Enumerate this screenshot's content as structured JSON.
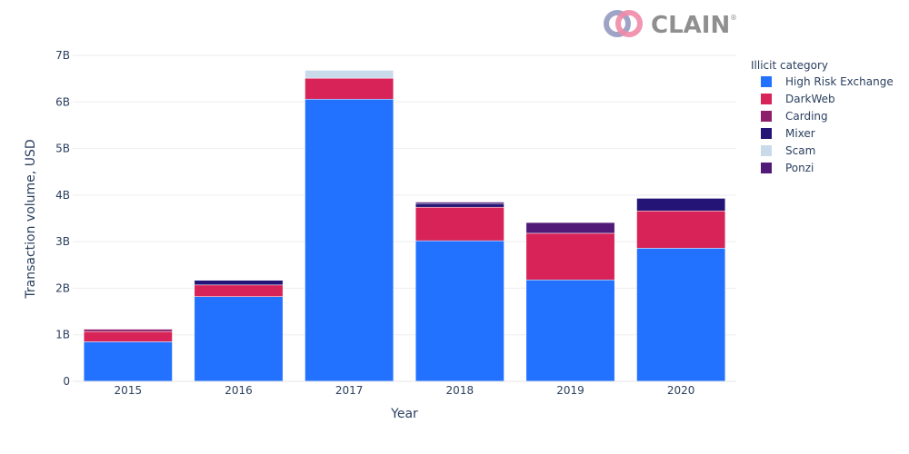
{
  "logo": {
    "text": "CLAIN",
    "reg": "®"
  },
  "chart_data": {
    "type": "bar",
    "stacked": true,
    "categories": [
      "2015",
      "2016",
      "2017",
      "2018",
      "2019",
      "2020"
    ],
    "series": [
      {
        "name": "High Risk Exchange",
        "color": "#2271FF",
        "values": [
          0.85,
          1.82,
          6.06,
          3.02,
          2.18,
          2.86
        ]
      },
      {
        "name": "DarkWeb",
        "color": "#D72357",
        "values": [
          0.22,
          0.25,
          0.45,
          0.72,
          1.0,
          0.8
        ]
      },
      {
        "name": "Carding",
        "color": "#8C1F6B",
        "values": [
          0.05,
          0.0,
          0.0,
          0.0,
          0.0,
          0.0
        ]
      },
      {
        "name": "Mixer",
        "color": "#241475",
        "values": [
          0.0,
          0.1,
          0.0,
          0.08,
          0.0,
          0.27
        ]
      },
      {
        "name": "Scam",
        "color": "#C9DAEA",
        "values": [
          0.0,
          0.0,
          0.17,
          0.0,
          0.0,
          0.0
        ]
      },
      {
        "name": "Ponzi",
        "color": "#521A77",
        "values": [
          0.0,
          0.0,
          0.0,
          0.03,
          0.23,
          0.0
        ]
      }
    ],
    "xlabel": "Year",
    "ylabel": "Transaction volume, USD",
    "ylim": [
      0,
      7
    ],
    "yticks": [
      0,
      1,
      2,
      3,
      4,
      5,
      6,
      7
    ],
    "ytick_labels": [
      "0",
      "1B",
      "2B",
      "3B",
      "4B",
      "5B",
      "6B",
      "7B"
    ],
    "legend_title": "Illicit category",
    "legend_position": "right",
    "grid": true
  }
}
